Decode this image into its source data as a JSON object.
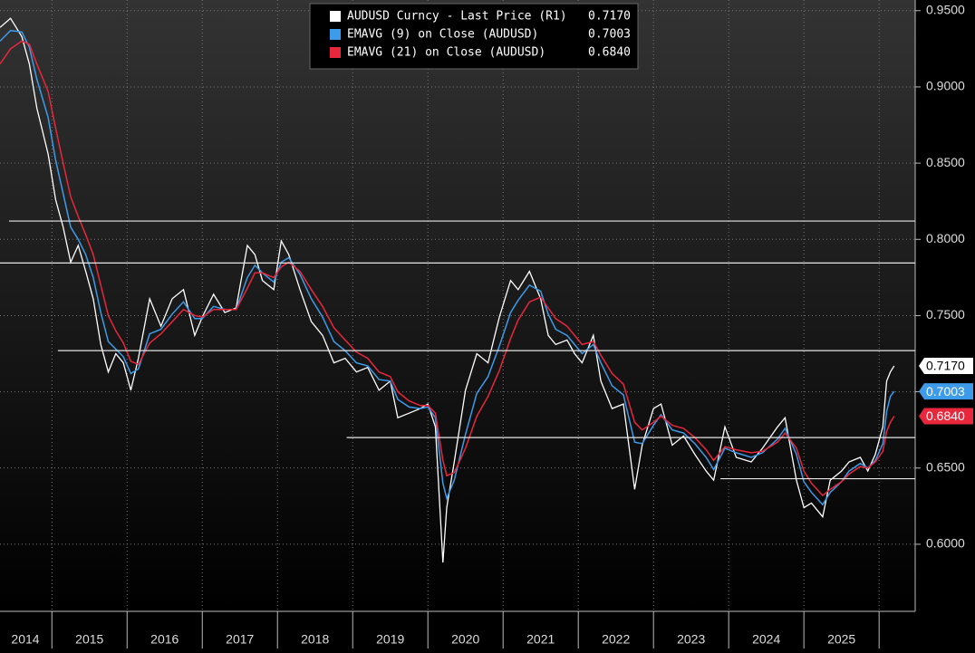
{
  "chart_data": {
    "type": "line",
    "legend": {
      "corner": "top-center"
    },
    "grid": true,
    "x": [
      2014.31,
      2014.45,
      2014.6,
      2014.7,
      2014.8,
      2014.95,
      2015.05,
      2015.15,
      2015.25,
      2015.35,
      2015.45,
      2015.55,
      2015.65,
      2015.75,
      2015.85,
      2015.95,
      2016.05,
      2016.15,
      2016.3,
      2016.45,
      2016.6,
      2016.75,
      2016.9,
      2017.0,
      2017.15,
      2017.3,
      2017.45,
      2017.6,
      2017.7,
      2017.8,
      2017.95,
      2018.05,
      2018.15,
      2018.3,
      2018.45,
      2018.6,
      2018.75,
      2018.9,
      2019.05,
      2019.2,
      2019.35,
      2019.5,
      2019.6,
      2019.75,
      2019.9,
      2020.0,
      2020.1,
      2020.2,
      2020.25,
      2020.35,
      2020.5,
      2020.65,
      2020.8,
      2020.95,
      2021.1,
      2021.2,
      2021.35,
      2021.5,
      2021.6,
      2021.7,
      2021.85,
      2021.95,
      2022.05,
      2022.2,
      2022.3,
      2022.45,
      2022.6,
      2022.75,
      2022.85,
      2023.0,
      2023.1,
      2023.25,
      2023.4,
      2023.55,
      2023.7,
      2023.8,
      2023.95,
      2024.1,
      2024.3,
      2024.45,
      2024.65,
      2024.75,
      2024.9,
      2025.0,
      2025.1,
      2025.25,
      2025.35,
      2025.5,
      2025.6,
      2025.75,
      2025.85,
      2025.95,
      2026.05,
      2026.1,
      2026.15,
      2026.2
    ],
    "series": [
      {
        "name": "AUDUSD Curncy - Last Price (R1)",
        "color": "#ffffff",
        "last_label": "0.7170",
        "label_text": "#000000",
        "values": [
          0.939,
          0.945,
          0.933,
          0.915,
          0.886,
          0.856,
          0.826,
          0.808,
          0.785,
          0.796,
          0.779,
          0.761,
          0.731,
          0.713,
          0.725,
          0.719,
          0.701,
          0.722,
          0.761,
          0.743,
          0.761,
          0.767,
          0.737,
          0.749,
          0.764,
          0.752,
          0.755,
          0.796,
          0.79,
          0.773,
          0.767,
          0.799,
          0.79,
          0.767,
          0.746,
          0.737,
          0.719,
          0.722,
          0.713,
          0.716,
          0.701,
          0.707,
          0.683,
          0.686,
          0.689,
          0.692,
          0.677,
          0.588,
          0.624,
          0.654,
          0.701,
          0.725,
          0.719,
          0.749,
          0.773,
          0.767,
          0.779,
          0.761,
          0.737,
          0.731,
          0.734,
          0.725,
          0.719,
          0.737,
          0.707,
          0.689,
          0.692,
          0.636,
          0.665,
          0.689,
          0.692,
          0.665,
          0.671,
          0.659,
          0.648,
          0.642,
          0.677,
          0.657,
          0.654,
          0.663,
          0.677,
          0.683,
          0.642,
          0.624,
          0.627,
          0.618,
          0.642,
          0.648,
          0.654,
          0.657,
          0.648,
          0.659,
          0.677,
          0.707,
          0.713,
          0.717
        ]
      },
      {
        "name": "EMAVG (9)  on Close (AUDUSD)",
        "color": "#3d9be9",
        "last_label": "0.7003",
        "label_text": "#ffffff",
        "values": [
          0.93,
          0.937,
          0.936,
          0.926,
          0.905,
          0.88,
          0.852,
          0.83,
          0.808,
          0.8,
          0.79,
          0.775,
          0.752,
          0.733,
          0.728,
          0.723,
          0.712,
          0.715,
          0.738,
          0.741,
          0.751,
          0.759,
          0.748,
          0.748,
          0.756,
          0.754,
          0.754,
          0.775,
          0.783,
          0.778,
          0.772,
          0.785,
          0.788,
          0.777,
          0.761,
          0.749,
          0.733,
          0.727,
          0.719,
          0.717,
          0.708,
          0.707,
          0.695,
          0.69,
          0.689,
          0.69,
          0.683,
          0.64,
          0.63,
          0.642,
          0.672,
          0.699,
          0.71,
          0.73,
          0.752,
          0.76,
          0.77,
          0.766,
          0.751,
          0.741,
          0.737,
          0.731,
          0.725,
          0.731,
          0.719,
          0.704,
          0.698,
          0.667,
          0.666,
          0.678,
          0.685,
          0.675,
          0.673,
          0.666,
          0.657,
          0.649,
          0.663,
          0.66,
          0.657,
          0.66,
          0.669,
          0.676,
          0.659,
          0.641,
          0.634,
          0.626,
          0.634,
          0.641,
          0.648,
          0.653,
          0.65,
          0.655,
          0.666,
          0.687,
          0.697,
          0.7003
        ]
      },
      {
        "name": "EMAVG (21)  on Close (AUDUSD)",
        "color": "#e8273c",
        "last_label": "0.6840",
        "label_text": "#ffffff",
        "values": [
          0.915,
          0.925,
          0.93,
          0.928,
          0.915,
          0.897,
          0.873,
          0.85,
          0.828,
          0.815,
          0.803,
          0.79,
          0.77,
          0.75,
          0.74,
          0.732,
          0.72,
          0.718,
          0.732,
          0.738,
          0.746,
          0.754,
          0.75,
          0.749,
          0.754,
          0.754,
          0.754,
          0.768,
          0.778,
          0.778,
          0.775,
          0.782,
          0.785,
          0.779,
          0.767,
          0.756,
          0.742,
          0.734,
          0.726,
          0.722,
          0.713,
          0.71,
          0.7,
          0.694,
          0.691,
          0.691,
          0.686,
          0.655,
          0.645,
          0.647,
          0.663,
          0.684,
          0.697,
          0.714,
          0.735,
          0.747,
          0.759,
          0.762,
          0.755,
          0.748,
          0.743,
          0.737,
          0.731,
          0.733,
          0.724,
          0.712,
          0.705,
          0.68,
          0.675,
          0.68,
          0.684,
          0.678,
          0.676,
          0.67,
          0.662,
          0.655,
          0.664,
          0.662,
          0.66,
          0.661,
          0.667,
          0.673,
          0.663,
          0.648,
          0.64,
          0.632,
          0.636,
          0.641,
          0.646,
          0.651,
          0.65,
          0.654,
          0.661,
          0.674,
          0.68,
          0.684
        ]
      }
    ],
    "levels": [
      {
        "value": 0.812,
        "from": 2014.43
      },
      {
        "value": 0.7845,
        "from": 2014.31
      },
      {
        "value": 0.727,
        "from": 2015.08
      },
      {
        "value": 0.67,
        "from": 2018.92
      },
      {
        "value": 0.643,
        "from": 2023.89
      }
    ],
    "xlim": [
      2014.31,
      2026.48
    ],
    "xticks": [
      {
        "value": 2014.5,
        "label": "2014"
      },
      {
        "value": 2015.5,
        "label": "2015"
      },
      {
        "value": 2016.5,
        "label": "2016"
      },
      {
        "value": 2017.5,
        "label": "2017"
      },
      {
        "value": 2018.5,
        "label": "2018"
      },
      {
        "value": 2019.5,
        "label": "2019"
      },
      {
        "value": 2020.5,
        "label": "2020"
      },
      {
        "value": 2021.5,
        "label": "2021"
      },
      {
        "value": 2022.5,
        "label": "2022"
      },
      {
        "value": 2023.5,
        "label": "2023"
      },
      {
        "value": 2024.5,
        "label": "2024"
      },
      {
        "value": 2025.5,
        "label": "2025"
      }
    ],
    "ylim": [
      0.556,
      0.957
    ],
    "yticks": [
      {
        "value": 0.6,
        "label": "0.6000"
      },
      {
        "value": 0.65,
        "label": "0.6500"
      },
      {
        "value": 0.7,
        "label": "0.7000"
      },
      {
        "value": 0.75,
        "label": "0.7500"
      },
      {
        "value": 0.8,
        "label": "0.8000"
      },
      {
        "value": 0.85,
        "label": "0.8500"
      },
      {
        "value": 0.9,
        "label": "0.9000"
      },
      {
        "value": 0.95,
        "label": "0.9500"
      }
    ]
  }
}
